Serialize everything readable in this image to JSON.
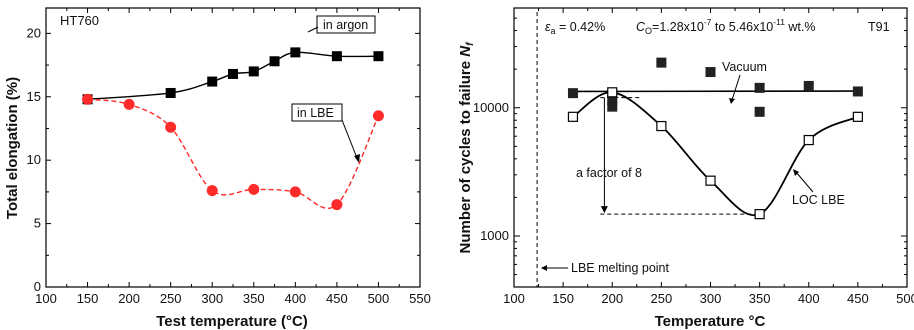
{
  "chart_data": [
    {
      "type": "scatter",
      "title": "HT760",
      "xlabel": "Test temperature (°C)",
      "ylabel": "Total elongation (%)",
      "xlim": [
        100,
        550
      ],
      "ylim": [
        0,
        22
      ],
      "xticks": [
        "100",
        "150",
        "200",
        "250",
        "300",
        "350",
        "400",
        "450",
        "500",
        "550"
      ],
      "yticks": [
        "0",
        "5",
        "10",
        "15",
        "20"
      ],
      "series": [
        {
          "name": "in argon",
          "color": "#000000",
          "marker": "square",
          "line": "solid",
          "x": [
            150,
            250,
            300,
            325,
            350,
            375,
            400,
            450,
            500
          ],
          "y": [
            14.8,
            15.3,
            16.2,
            16.8,
            17.0,
            17.8,
            18.5,
            18.2,
            18.2
          ]
        },
        {
          "name": "in LBE",
          "color": "#ff2a2a",
          "marker": "circle",
          "line": "dashed",
          "x": [
            150,
            200,
            250,
            300,
            350,
            400,
            450,
            500
          ],
          "y": [
            14.8,
            14.4,
            12.6,
            7.6,
            7.7,
            7.5,
            6.5,
            13.5
          ]
        }
      ],
      "annotations": [
        "HT760",
        "in argon",
        "in LBE"
      ]
    },
    {
      "type": "scatter",
      "title": "T91",
      "xlabel": "Temperature °C",
      "ylabel": "Number of cycles to failure N_f",
      "xlim": [
        100,
        500
      ],
      "ylim": [
        400,
        60000
      ],
      "yscale": "log",
      "xticks": [
        "100",
        "150",
        "200",
        "250",
        "300",
        "350",
        "400",
        "450",
        "500"
      ],
      "yticks": [
        "1000",
        "10000"
      ],
      "series": [
        {
          "name": "Vacuum",
          "marker": "filled-square",
          "x": [
            160,
            200,
            200,
            250,
            300,
            350,
            350,
            400,
            450
          ],
          "y": [
            13000,
            11500,
            10200,
            22500,
            19000,
            14300,
            9300,
            14800,
            13400
          ]
        },
        {
          "name": "LOC LBE",
          "marker": "open-square",
          "x": [
            160,
            200,
            250,
            300,
            350,
            400,
            450
          ],
          "y": [
            8500,
            13200,
            7200,
            2700,
            1480,
            5600,
            8500
          ]
        }
      ],
      "annotations": {
        "strain": "ε",
        "strain_sub": "a",
        "strain_value": " = 0.42%",
        "oxygen": "C",
        "oxygen_sub": "O",
        "oxygen_range_a": "=1.28x10",
        "oxygen_exp_a": "-7",
        "oxygen_range_b": " to 5.46x10",
        "oxygen_exp_b": "-11",
        "oxygen_unit": " wt.%",
        "material": "T91",
        "vacuum_label": "Vacuum",
        "loc_label": "LOC LBE",
        "factor_label": "a factor of 8",
        "melting_label": "LBE melting point",
        "melting_point_x": 123.5
      }
    }
  ]
}
